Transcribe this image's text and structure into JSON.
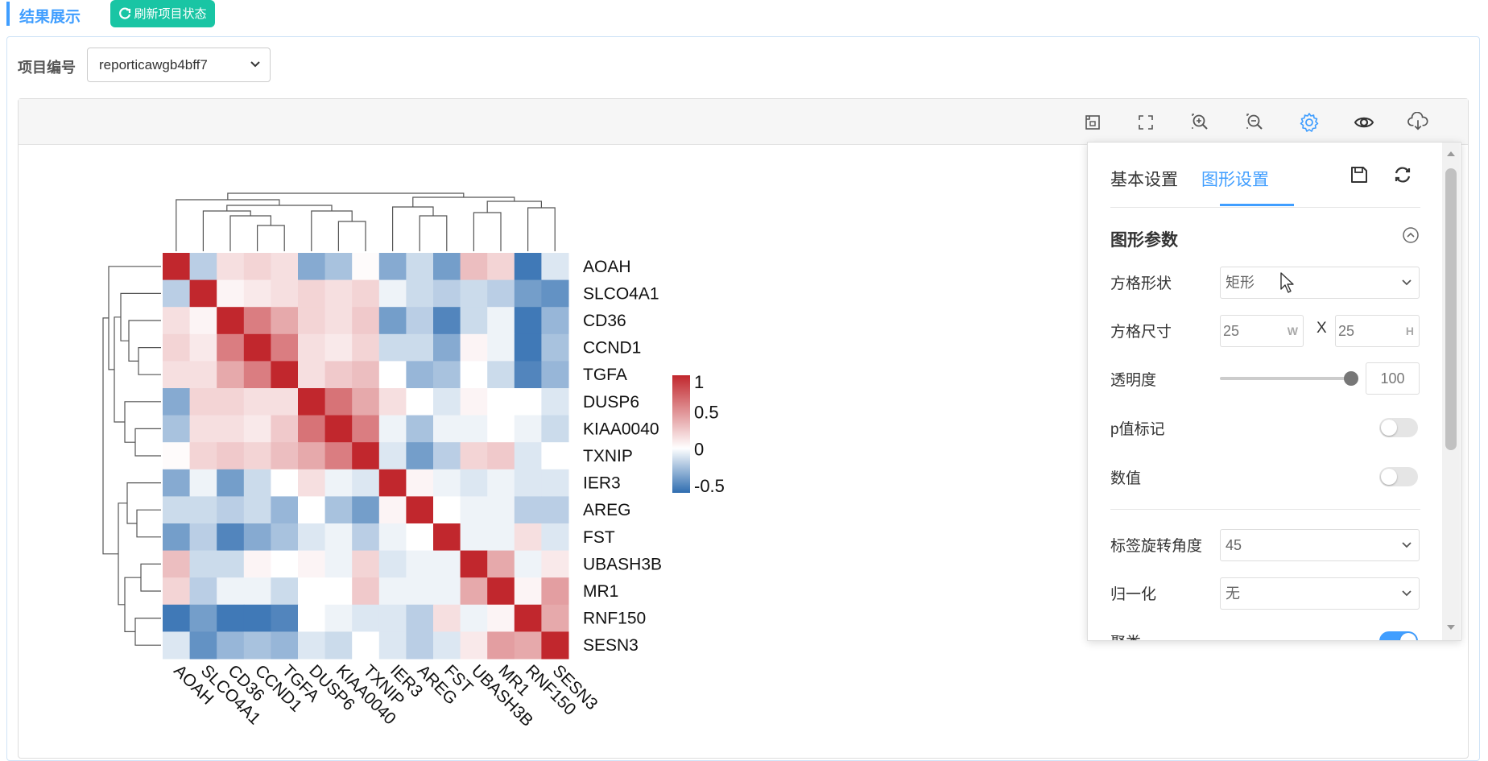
{
  "header": {
    "title": "结果展示",
    "refresh_label": "刷新项目状态"
  },
  "project": {
    "label": "项目编号",
    "selected": "reporticawgb4bff7"
  },
  "toolbar": {
    "icons": [
      "fit-screen-icon",
      "fullscreen-icon",
      "zoom-in-icon",
      "zoom-out-icon",
      "gear-icon",
      "eye-icon",
      "cloud-download-icon"
    ],
    "active_color": "#409eff"
  },
  "chart_data": {
    "type": "heatmap",
    "genes": [
      "AOAH",
      "SLCO4A1",
      "CD36",
      "CCND1",
      "TGFA",
      "DUSP6",
      "KIAA0040",
      "TXNIP",
      "IER3",
      "AREG",
      "FST",
      "UBASH3B",
      "MR1",
      "RNF150",
      "SESN3"
    ],
    "matrix": [
      [
        1,
        -0.2,
        0.15,
        0.2,
        0.15,
        -0.35,
        -0.25,
        0.02,
        -0.35,
        -0.15,
        -0.4,
        0.3,
        0.2,
        -0.55,
        -0.1
      ],
      [
        -0.2,
        1,
        0.05,
        0.1,
        0.15,
        0.2,
        0.15,
        0.2,
        -0.05,
        -0.15,
        -0.2,
        -0.15,
        -0.2,
        -0.4,
        -0.45
      ],
      [
        0.15,
        0.05,
        1,
        0.6,
        0.4,
        0.2,
        0.15,
        0.25,
        -0.4,
        -0.2,
        -0.5,
        -0.15,
        -0.05,
        -0.55,
        -0.3
      ],
      [
        0.2,
        0.1,
        0.6,
        1,
        0.6,
        0.15,
        0.1,
        0.2,
        -0.15,
        -0.15,
        -0.35,
        0.05,
        -0.05,
        -0.55,
        -0.25
      ],
      [
        0.15,
        0.15,
        0.4,
        0.6,
        1,
        0.15,
        0.25,
        0.3,
        0.0,
        -0.3,
        -0.25,
        0.0,
        -0.15,
        -0.5,
        -0.3
      ],
      [
        -0.35,
        0.2,
        0.2,
        0.15,
        0.15,
        1,
        0.65,
        0.4,
        0.15,
        0.0,
        -0.1,
        0.05,
        0.0,
        0.0,
        -0.1
      ],
      [
        -0.25,
        0.15,
        0.15,
        0.1,
        0.25,
        0.65,
        1,
        0.6,
        -0.05,
        -0.25,
        -0.05,
        -0.05,
        0.0,
        -0.05,
        -0.15
      ],
      [
        0.02,
        0.2,
        0.25,
        0.2,
        0.3,
        0.4,
        0.6,
        1,
        -0.1,
        -0.4,
        -0.2,
        0.2,
        0.25,
        -0.1,
        0.0
      ],
      [
        -0.35,
        -0.05,
        -0.4,
        -0.15,
        0.0,
        0.15,
        -0.05,
        -0.1,
        1,
        0.05,
        -0.05,
        -0.1,
        -0.05,
        -0.1,
        -0.1
      ],
      [
        -0.15,
        -0.15,
        -0.2,
        -0.15,
        -0.3,
        0.0,
        -0.25,
        -0.4,
        0.05,
        1,
        0.0,
        -0.05,
        -0.05,
        -0.2,
        -0.2
      ],
      [
        -0.4,
        -0.2,
        -0.5,
        -0.35,
        -0.25,
        -0.1,
        -0.05,
        -0.2,
        -0.05,
        0.0,
        1,
        -0.05,
        -0.05,
        0.15,
        -0.1
      ],
      [
        0.3,
        -0.15,
        -0.15,
        0.05,
        0.0,
        0.05,
        -0.05,
        0.2,
        -0.1,
        -0.05,
        -0.05,
        1,
        0.4,
        -0.05,
        0.1
      ],
      [
        0.2,
        -0.2,
        -0.05,
        -0.05,
        -0.15,
        0.0,
        0.0,
        0.25,
        -0.05,
        -0.05,
        -0.05,
        0.4,
        1,
        0.05,
        0.45
      ],
      [
        -0.55,
        -0.4,
        -0.55,
        -0.55,
        -0.5,
        0.0,
        -0.05,
        -0.1,
        -0.1,
        -0.2,
        0.15,
        -0.05,
        0.05,
        1,
        0.4
      ],
      [
        -0.1,
        -0.45,
        -0.3,
        -0.25,
        -0.3,
        -0.1,
        -0.15,
        0.0,
        -0.1,
        -0.2,
        -0.1,
        0.1,
        0.45,
        0.4,
        1
      ]
    ],
    "legend": {
      "ticks": [
        "1",
        "0.5",
        "0",
        "-0.5"
      ],
      "min": -0.6,
      "max": 1
    },
    "colors": {
      "high": "#c1272d",
      "mid": "#ffffff",
      "low": "#2f6db0"
    }
  },
  "settings": {
    "tab_basic": "基本设置",
    "tab_graph": "图形设置",
    "group_title": "图形参数",
    "rows": {
      "shape_label": "方格形状",
      "shape_value": "矩形",
      "size_label": "方格尺寸",
      "size_w": "25",
      "size_w_unit": "W",
      "size_x": "X",
      "size_h": "25",
      "size_h_unit": "H",
      "opacity_label": "透明度",
      "opacity_value": "100",
      "pvalue_label": "p值标记",
      "value_label": "数值",
      "rotate_label": "标签旋转角度",
      "rotate_value": "45",
      "normalize_label": "归一化",
      "normalize_value": "无",
      "cluster_label": "聚类"
    },
    "toggles": {
      "pvalue": false,
      "value": false,
      "cluster": true
    }
  }
}
